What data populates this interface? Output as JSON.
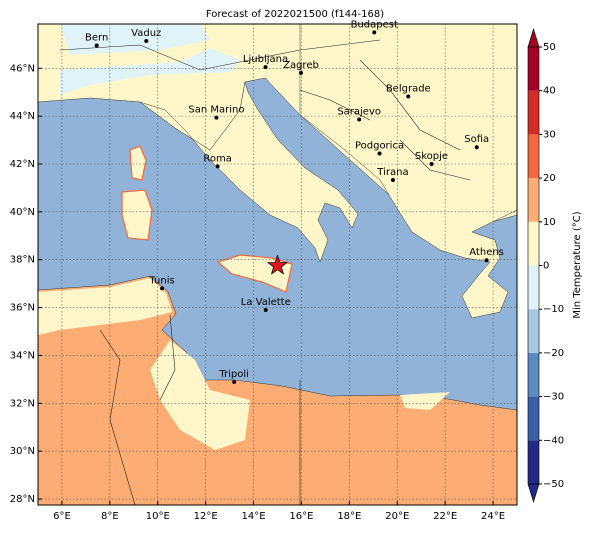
{
  "title": "Forecast of 2022021500 (f144-168)",
  "map": {
    "xlim": [
      5,
      25
    ],
    "ylim": [
      27.75,
      47.85
    ],
    "grid": true,
    "xticks": [
      {
        "value": 6,
        "label": "6°E"
      },
      {
        "value": 8,
        "label": "8°E"
      },
      {
        "value": 10,
        "label": "10°E"
      },
      {
        "value": 12,
        "label": "12°E"
      },
      {
        "value": 14,
        "label": "14°E"
      },
      {
        "value": 16,
        "label": "16°E"
      },
      {
        "value": 18,
        "label": "18°E"
      },
      {
        "value": 20,
        "label": "20°E"
      },
      {
        "value": 22,
        "label": "22°E"
      },
      {
        "value": 24,
        "label": "24°E"
      }
    ],
    "yticks": [
      {
        "value": 28,
        "label": "28°N"
      },
      {
        "value": 30,
        "label": "30°N"
      },
      {
        "value": 32,
        "label": "32°N"
      },
      {
        "value": 34,
        "label": "34°N"
      },
      {
        "value": 36,
        "label": "36°N"
      },
      {
        "value": 38,
        "label": "38°N"
      },
      {
        "value": 40,
        "label": "40°N"
      },
      {
        "value": 42,
        "label": "42°N"
      },
      {
        "value": 44,
        "label": "44°N"
      },
      {
        "value": 46,
        "label": "46°N"
      }
    ],
    "cities": [
      {
        "name": "Bern",
        "lon": 7.45,
        "lat": 46.95
      },
      {
        "name": "Vaduz",
        "lon": 9.52,
        "lat": 47.14
      },
      {
        "name": "Budapest",
        "lon": 19.04,
        "lat": 47.5
      },
      {
        "name": "Ljubljana",
        "lon": 14.5,
        "lat": 46.05
      },
      {
        "name": "Zagreb",
        "lon": 15.98,
        "lat": 45.81
      },
      {
        "name": "Belgrade",
        "lon": 20.46,
        "lat": 44.82
      },
      {
        "name": "San Marino",
        "lon": 12.45,
        "lat": 43.94
      },
      {
        "name": "Sarajevo",
        "lon": 18.41,
        "lat": 43.86
      },
      {
        "name": "Roma",
        "lon": 12.5,
        "lat": 41.9
      },
      {
        "name": "Podgorica",
        "lon": 19.26,
        "lat": 42.44
      },
      {
        "name": "Skopje",
        "lon": 21.43,
        "lat": 42.0
      },
      {
        "name": "Sofia",
        "lon": 23.32,
        "lat": 42.7
      },
      {
        "name": "Tirana",
        "lon": 19.82,
        "lat": 41.33
      },
      {
        "name": "Athens",
        "lon": 23.73,
        "lat": 37.98
      },
      {
        "name": "Tunis",
        "lon": 10.18,
        "lat": 36.8
      },
      {
        "name": "La Valette",
        "lon": 14.51,
        "lat": 35.9
      },
      {
        "name": "Tripoli",
        "lon": 13.19,
        "lat": 32.89
      }
    ],
    "marker": {
      "lon": 15.0,
      "lat": 37.75,
      "color": "#e8141c"
    }
  },
  "colorbar": {
    "label": "Min Temperature (°C)",
    "lim": [
      -50,
      50
    ],
    "ticks": [
      {
        "value": -50,
        "label": "−50"
      },
      {
        "value": -40,
        "label": "−40"
      },
      {
        "value": -30,
        "label": "−30"
      },
      {
        "value": -20,
        "label": "−20"
      },
      {
        "value": -10,
        "label": "−10"
      },
      0,
      10,
      20,
      30,
      40,
      50
    ],
    "colors": [
      "#232a86",
      "#3a5ea8",
      "#5d8bc0",
      "#a6c9e2",
      "#e0f3f8",
      "#fff7c9",
      "#fdad73",
      "#f4683f",
      "#d42d27",
      "#a30224"
    ]
  }
}
